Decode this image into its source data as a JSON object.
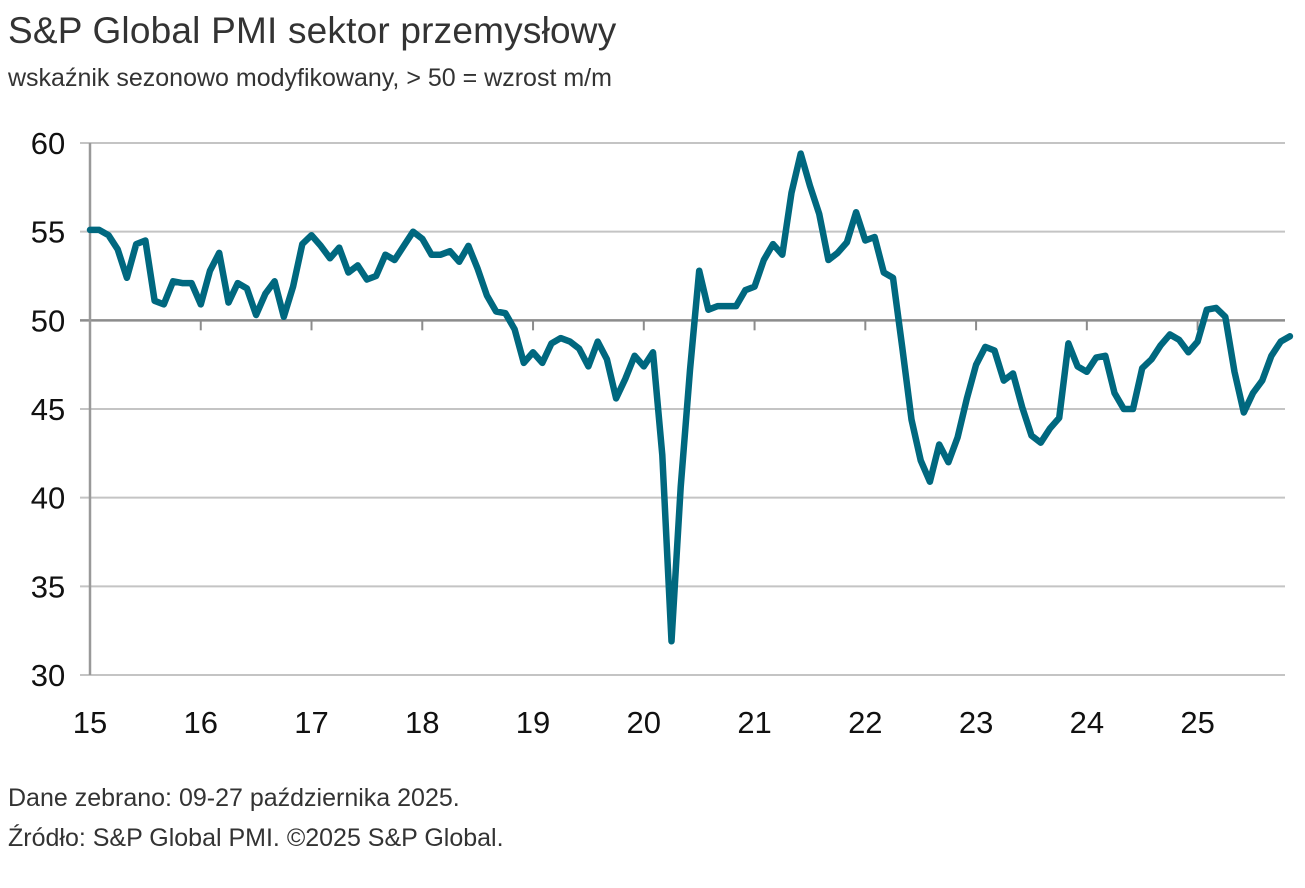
{
  "chart_data": {
    "type": "line",
    "title": "S&P Global PMI sektor przemysłowy",
    "subtitle": "wskaźnik sezonowo modyfikowany, > 50 = wzrost m/m",
    "xlabel": "",
    "ylabel": "",
    "ylim": [
      30,
      60
    ],
    "yticks": [
      60,
      55,
      50,
      45,
      40,
      35,
      30
    ],
    "xticks": [
      "15",
      "16",
      "17",
      "18",
      "19",
      "20",
      "21",
      "22",
      "23",
      "24",
      "25"
    ],
    "x_start": "2015-01",
    "x_frequency": "monthly",
    "reference_line": 50,
    "grid": true,
    "legend": "none",
    "series": [
      {
        "name": "PMI sektor przemysłowy",
        "color": "#00687f",
        "values": [
          55.1,
          55.1,
          54.8,
          54.0,
          52.4,
          54.3,
          54.5,
          51.1,
          50.9,
          52.2,
          52.1,
          52.1,
          50.9,
          52.8,
          53.8,
          51.0,
          52.1,
          51.8,
          50.3,
          51.5,
          52.2,
          50.2,
          51.9,
          54.3,
          54.8,
          54.2,
          53.5,
          54.1,
          52.7,
          53.1,
          52.3,
          52.5,
          53.7,
          53.4,
          54.2,
          55.0,
          54.6,
          53.7,
          53.7,
          53.9,
          53.3,
          54.2,
          52.9,
          51.4,
          50.5,
          50.4,
          49.5,
          47.6,
          48.2,
          47.6,
          48.7,
          49.0,
          48.8,
          48.4,
          47.4,
          48.8,
          47.8,
          45.6,
          46.7,
          48.0,
          47.4,
          48.2,
          42.4,
          31.9,
          40.6,
          47.2,
          52.8,
          50.6,
          50.8,
          50.8,
          50.8,
          51.7,
          51.9,
          53.4,
          54.3,
          53.7,
          57.2,
          59.4,
          57.6,
          56.0,
          53.4,
          53.8,
          54.4,
          56.1,
          54.5,
          54.7,
          52.7,
          52.4,
          48.5,
          44.4,
          42.1,
          40.9,
          43.0,
          42.0,
          43.4,
          45.6,
          47.5,
          48.5,
          48.3,
          46.6,
          47.0,
          45.1,
          43.5,
          43.1,
          43.9,
          44.5,
          48.7,
          47.4,
          47.1,
          47.9,
          48.0,
          45.9,
          45.0,
          45.0,
          47.3,
          47.8,
          48.6,
          49.2,
          48.9,
          48.2,
          48.8,
          50.6,
          50.7,
          50.2,
          47.1,
          44.8,
          45.9,
          46.6,
          48.0,
          48.8,
          49.1
        ]
      }
    ],
    "colors": {
      "line": "#00687f",
      "grid": "#c4c4c4",
      "reference": "#8c8c8c",
      "axis": "#999999"
    }
  },
  "footer": {
    "collected": "Dane zebrano: 09-27 października 2025.",
    "source": "Źródło: S&P Global PMI. ©2025 S&P Global."
  }
}
